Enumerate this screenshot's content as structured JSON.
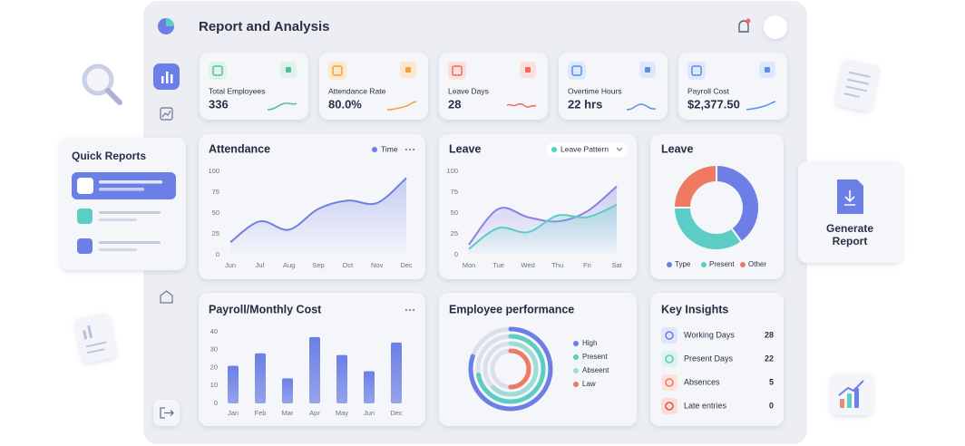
{
  "header": {
    "title": "Report and Analysis"
  },
  "kpis": [
    {
      "label": "Total Employees",
      "value": "336"
    },
    {
      "label": "Attendance Rate",
      "value": "80.0%"
    },
    {
      "label": "Leave Days",
      "value": "28"
    },
    {
      "label": "Overtime Hours",
      "value": "22 hrs"
    },
    {
      "label": "Payroll Cost",
      "value": "$2,377.50"
    }
  ],
  "quick_reports": {
    "title": "Quick Reports"
  },
  "generate_report": {
    "label": "Generate Report"
  },
  "key_insights": {
    "title": "Key Insights",
    "items": [
      {
        "label": "Working Days",
        "value": 28
      },
      {
        "label": "Present Days",
        "value": 22
      },
      {
        "label": "Absences",
        "value": 5
      },
      {
        "label": "Late entries",
        "value": 0
      }
    ]
  },
  "chart_data": [
    {
      "type": "line",
      "title": "Attendance",
      "smooth": true,
      "area": true,
      "categories": [
        "Jun",
        "Jul",
        "Aug",
        "Sep",
        "Oct",
        "Nov",
        "Dec"
      ],
      "series": [
        {
          "name": "Time",
          "color": "#6f7fe2",
          "values": [
            15,
            40,
            30,
            55,
            65,
            62,
            92
          ]
        }
      ],
      "ylim": [
        0,
        100
      ],
      "yticks": [
        0,
        25,
        50,
        75,
        100
      ]
    },
    {
      "type": "line",
      "title": "Leave",
      "smooth": true,
      "area": true,
      "categories": [
        "Mon",
        "Tue",
        "Wed",
        "Thu",
        "Fri",
        "Sat"
      ],
      "series": [
        {
          "color": "#8b80e8",
          "values": [
            12,
            55,
            45,
            40,
            52,
            82
          ]
        },
        {
          "name": "Leave Pattern",
          "color": "#5ccdc4",
          "values": [
            7,
            32,
            27,
            47,
            45,
            60
          ]
        }
      ],
      "ylim": [
        0,
        100
      ],
      "yticks": [
        0,
        25,
        50,
        75,
        100
      ]
    },
    {
      "type": "pie",
      "title": "Leave",
      "donut": true,
      "categories": [
        "Type",
        "Present",
        "Other"
      ],
      "values": [
        40,
        35,
        25
      ],
      "colors": [
        "#6d7fe6",
        "#5ccdc4",
        "#ef7a62"
      ]
    },
    {
      "type": "bar",
      "title": "Payroll/Monthly Cost",
      "categories": [
        "Jan",
        "Feb",
        "Mar",
        "Apr",
        "May",
        "Jun",
        "Dec"
      ],
      "values": [
        21,
        28,
        14,
        37,
        27,
        18,
        34
      ],
      "color": "#6b7fe6",
      "ylim": [
        0,
        40
      ],
      "yticks": [
        0,
        10,
        20,
        30,
        40
      ]
    },
    {
      "type": "radial",
      "title": "Employee performance",
      "categories": [
        "High",
        "Present",
        "Abseent",
        "Law"
      ],
      "values": [
        80,
        72,
        62,
        50
      ],
      "colors": [
        "#6b7fe6",
        "#5ccdc4",
        "#9fdcd6",
        "#ef7a62"
      ]
    }
  ]
}
